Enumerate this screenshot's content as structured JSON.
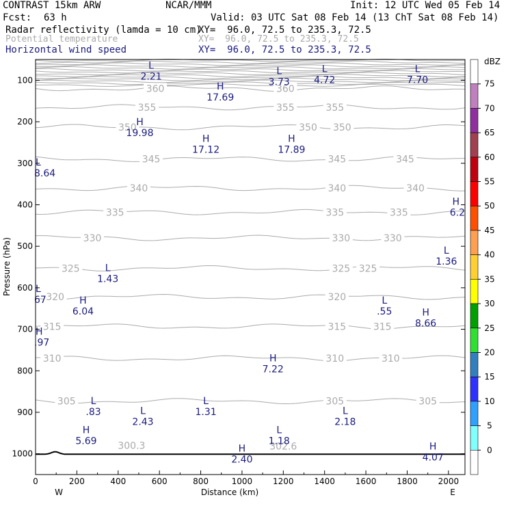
{
  "header": {
    "model": "CONTRAST 15km ARW",
    "org": "NCAR/MMM",
    "init": "Init: 12 UTC Wed 05 Feb 14",
    "fcst_label": "Fcst:",
    "fcst_value": "63 h",
    "valid": "Valid: 03 UTC Sat 08 Feb 14 (13 ChT Sat 08 Feb 14)",
    "fields": [
      {
        "name": "Radar reflectivity (lamda = 10 cm)",
        "xy": "XY=  96.0, 72.5 to 235.3, 72.5",
        "color": "#000000"
      },
      {
        "name": "Potential temperature",
        "xy": "XY=  96.0, 72.5 to 235.3, 72.5",
        "color": "#aaaaaa"
      },
      {
        "name": "Horizontal wind speed",
        "xy": "XY=  96.0, 72.5 to 235.3, 72.5",
        "color": "#1a1a80"
      }
    ]
  },
  "colorbar": {
    "unit": "dBZ",
    "ticks": [
      "75",
      "70",
      "65",
      "60",
      "55",
      "50",
      "45",
      "40",
      "35",
      "30",
      "25",
      "20",
      "15",
      "10",
      "5",
      "0"
    ],
    "colors": [
      "#ffffff",
      "#c080c0",
      "#9030a0",
      "#a04050",
      "#c00010",
      "#ff0000",
      "#ff5000",
      "#ffa050",
      "#ffd030",
      "#ffff00",
      "#00a000",
      "#30e030",
      "#3080c0",
      "#3030ff",
      "#30a0ff",
      "#80ffff",
      "#ffffff"
    ]
  },
  "chart_data": {
    "type": "cross-section contour",
    "xlabel": "Distance (km)",
    "ylabel": "Pressure (hPa)",
    "xlim": [
      0,
      2080
    ],
    "ylim": [
      1050,
      50
    ],
    "xticks": [
      0,
      200,
      400,
      600,
      800,
      1000,
      1200,
      1400,
      1600,
      1800,
      2000
    ],
    "yticks": [
      100,
      200,
      300,
      400,
      500,
      600,
      700,
      800,
      900,
      1000
    ],
    "x_end_labels": {
      "left": "W",
      "right": "E"
    },
    "theta_contours": [
      {
        "label": "360",
        "p": 120,
        "labels_at": [
          580,
          1210
        ]
      },
      {
        "label": "355",
        "p": 165,
        "labels_at": [
          540,
          1210,
          1450
        ]
      },
      {
        "label": "350",
        "p": 213,
        "labels_at": [
          445,
          1320,
          1485
        ]
      },
      {
        "label": "345",
        "p": 290,
        "labels_at": [
          560,
          1460,
          1790
        ]
      },
      {
        "label": "340",
        "p": 360,
        "labels_at": [
          500,
          1460,
          1840
        ]
      },
      {
        "label": "335",
        "p": 418,
        "labels_at": [
          385,
          1450,
          1760
        ]
      },
      {
        "label": "330",
        "p": 480,
        "labels_at": [
          275,
          1480,
          1730
        ]
      },
      {
        "label": "325",
        "p": 553,
        "labels_at": [
          170,
          1480,
          1610
        ]
      },
      {
        "label": "320",
        "p": 622,
        "labels_at": [
          95,
          1460
        ]
      },
      {
        "label": "315",
        "p": 693,
        "labels_at": [
          80,
          1460,
          1680
        ]
      },
      {
        "label": "310",
        "p": 770,
        "labels_at": [
          80,
          1450,
          1720
        ]
      },
      {
        "label": "305",
        "p": 873,
        "labels_at": [
          150,
          1450,
          1900
        ]
      },
      {
        "label": "300.3",
        "p": 980,
        "labels_at": [
          465
        ]
      },
      {
        "label": "302.6",
        "p": 982,
        "labels_at": [
          1200
        ]
      }
    ],
    "wind_extrema": [
      {
        "t": "L",
        "v": "2.21",
        "x": 560,
        "p": 82
      },
      {
        "t": "L",
        "v": "3.73",
        "x": 1180,
        "p": 95
      },
      {
        "t": "L",
        "v": "4.72",
        "x": 1400,
        "p": 90
      },
      {
        "t": "L",
        "v": "7.70",
        "x": 1850,
        "p": 90
      },
      {
        "t": "H",
        "v": "17.69",
        "x": 895,
        "p": 132
      },
      {
        "t": "H",
        "v": "19.98",
        "x": 505,
        "p": 218
      },
      {
        "t": "H",
        "v": "17.12",
        "x": 825,
        "p": 258
      },
      {
        "t": "H",
        "v": "17.89",
        "x": 1240,
        "p": 258
      },
      {
        "t": "L",
        "v": "8.64",
        "x": 0,
        "p": 315
      },
      {
        "t": "H",
        "v": "6.2",
        "x": 2060,
        "p": 410
      },
      {
        "t": "L",
        "v": "1.36",
        "x": 1990,
        "p": 528
      },
      {
        "t": "L",
        "v": "1.43",
        "x": 350,
        "p": 570
      },
      {
        "t": "L",
        "v": "67",
        "x": 0,
        "p": 620
      },
      {
        "t": "H",
        "v": "6.04",
        "x": 230,
        "p": 648
      },
      {
        "t": "L",
        "v": ".55",
        "x": 1690,
        "p": 648
      },
      {
        "t": "H",
        "v": "8.66",
        "x": 1890,
        "p": 677
      },
      {
        "t": "H",
        "v": ".97",
        "x": 0,
        "p": 723
      },
      {
        "t": "H",
        "v": "7.22",
        "x": 1150,
        "p": 787
      },
      {
        "t": "L",
        "v": ".83",
        "x": 280,
        "p": 890
      },
      {
        "t": "L",
        "v": "2.43",
        "x": 520,
        "p": 914
      },
      {
        "t": "L",
        "v": "1.31",
        "x": 825,
        "p": 890
      },
      {
        "t": "L",
        "v": "2.18",
        "x": 1500,
        "p": 914
      },
      {
        "t": "H",
        "v": "5.69",
        "x": 245,
        "p": 960
      },
      {
        "t": "L",
        "v": "1.18",
        "x": 1180,
        "p": 960
      },
      {
        "t": "H",
        "v": "2.40",
        "x": 1000,
        "p": 1005
      },
      {
        "t": "H",
        "v": "4.07",
        "x": 1925,
        "p": 1000
      }
    ],
    "terrain_p": 1001
  }
}
